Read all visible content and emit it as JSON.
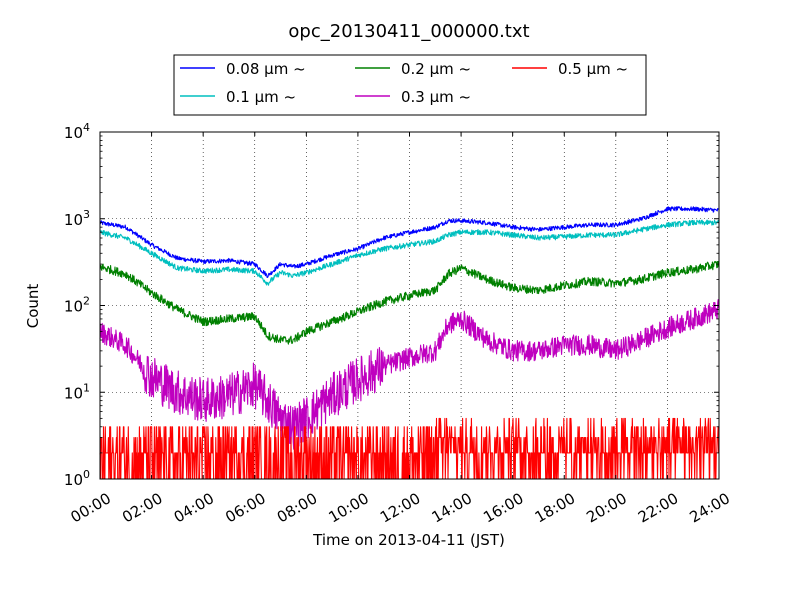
{
  "chart_data": {
    "type": "line",
    "title": "opc_20130411_000000.txt",
    "xlabel": "Time on 2013-04-11 (JST)",
    "ylabel": "Count",
    "yscale": "log",
    "ylim": [
      1,
      10000
    ],
    "xlim": [
      "00:00",
      "24:00"
    ],
    "grid": true,
    "legend_position": "top, above plot",
    "x_tick_labels": [
      "00:00",
      "02:00",
      "04:00",
      "06:00",
      "08:00",
      "10:00",
      "12:00",
      "14:00",
      "16:00",
      "18:00",
      "20:00",
      "22:00",
      "24:00"
    ],
    "y_ticks": [
      {
        "value": 1,
        "base": "10",
        "exp": "0"
      },
      {
        "value": 10,
        "base": "10",
        "exp": "1"
      },
      {
        "value": 100,
        "base": "10",
        "exp": "2"
      },
      {
        "value": 1000,
        "base": "10",
        "exp": "3"
      },
      {
        "value": 10000,
        "base": "10",
        "exp": "4"
      }
    ],
    "x": [
      "00:00",
      "01:00",
      "02:00",
      "03:00",
      "04:00",
      "05:00",
      "06:00",
      "06:30",
      "07:00",
      "07:30",
      "08:00",
      "09:00",
      "10:00",
      "11:00",
      "12:00",
      "13:00",
      "13:30",
      "14:00",
      "15:00",
      "16:00",
      "17:00",
      "18:00",
      "19:00",
      "20:00",
      "21:00",
      "22:00",
      "23:00",
      "24:00"
    ],
    "series": [
      {
        "name": "0.08 μm ~",
        "color": "#0000ff",
        "values": [
          900,
          800,
          500,
          350,
          320,
          330,
          300,
          220,
          300,
          280,
          300,
          380,
          450,
          600,
          700,
          800,
          950,
          950,
          900,
          800,
          750,
          800,
          850,
          850,
          1000,
          1300,
          1300,
          1250
        ]
      },
      {
        "name": "0.1 μm ~",
        "color": "#00bfbf",
        "values": [
          700,
          600,
          400,
          270,
          250,
          260,
          250,
          180,
          240,
          220,
          240,
          300,
          380,
          450,
          500,
          550,
          650,
          700,
          700,
          650,
          600,
          620,
          650,
          650,
          750,
          850,
          900,
          900
        ]
      },
      {
        "name": "0.2 μm ~",
        "color": "#008000",
        "values": [
          280,
          230,
          140,
          90,
          65,
          70,
          75,
          45,
          40,
          40,
          50,
          65,
          85,
          110,
          130,
          150,
          230,
          270,
          200,
          160,
          150,
          170,
          190,
          180,
          200,
          240,
          260,
          300
        ]
      },
      {
        "name": "0.3 μm ~",
        "color": "#bf00bf",
        "values": [
          50,
          35,
          15,
          10,
          8,
          9,
          12,
          8,
          5,
          4,
          5,
          9,
          14,
          20,
          25,
          30,
          60,
          70,
          40,
          30,
          30,
          35,
          35,
          30,
          40,
          55,
          70,
          90
        ]
      },
      {
        "name": "0.5 μm ~",
        "color": "#ff0000",
        "values": [
          2,
          2,
          1,
          1,
          1,
          1,
          1,
          1,
          1,
          1,
          1,
          1,
          1,
          1,
          1,
          1,
          2,
          2,
          2,
          2,
          2,
          2,
          2,
          2,
          2,
          3,
          3,
          3
        ]
      }
    ]
  }
}
